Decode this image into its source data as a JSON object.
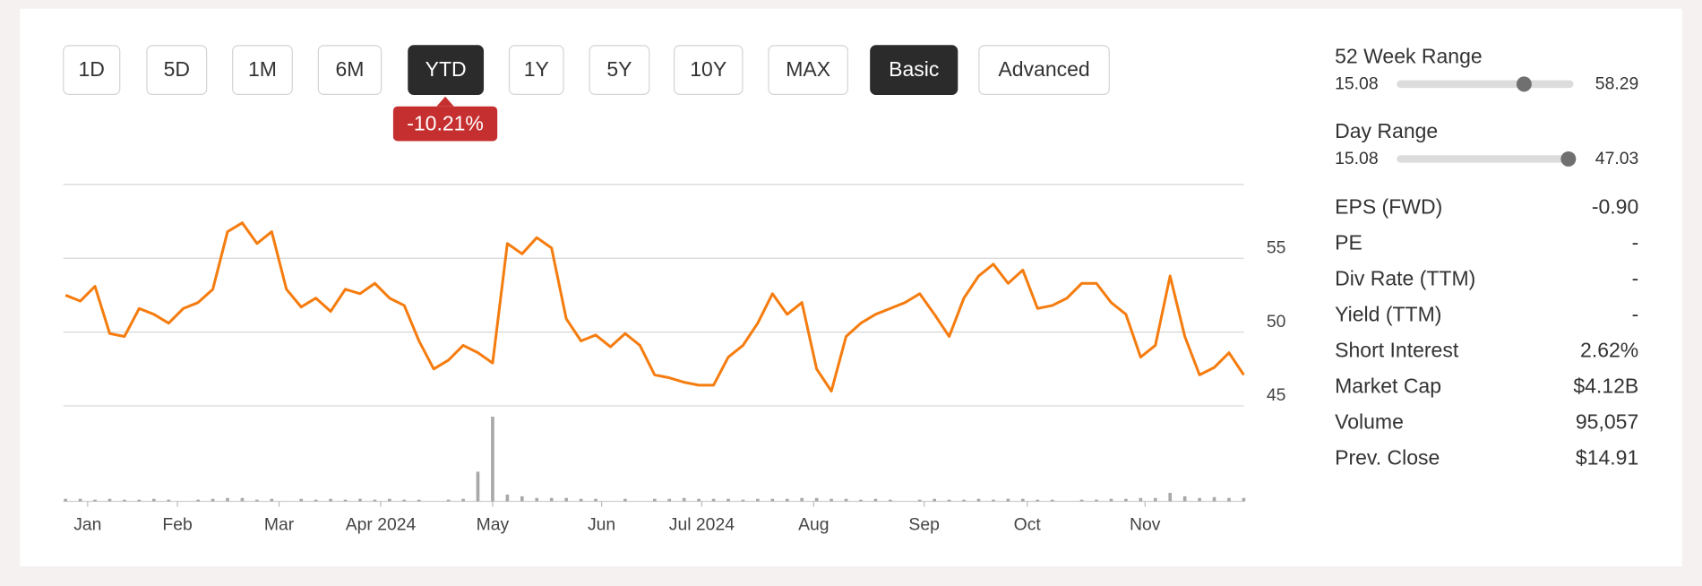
{
  "buttons": [
    {
      "label": "1D",
      "selected": false
    },
    {
      "label": "5D",
      "selected": false
    },
    {
      "label": "1M",
      "selected": false
    },
    {
      "label": "6M",
      "selected": false
    },
    {
      "label": "YTD",
      "selected": true
    },
    {
      "label": "1Y",
      "selected": false
    },
    {
      "label": "5Y",
      "selected": false
    },
    {
      "label": "10Y",
      "selected": false
    },
    {
      "label": "MAX",
      "selected": false
    },
    {
      "label": "Basic",
      "selected": true
    },
    {
      "label": "Advanced",
      "selected": false
    }
  ],
  "change_badge": "-10.21%",
  "chart_data": {
    "type": "line",
    "xlim": [
      0,
      80
    ],
    "ylim": [
      45,
      60
    ],
    "yticks": [
      45,
      50,
      55
    ],
    "xticks": [
      {
        "value": 1.5,
        "label": "Jan"
      },
      {
        "value": 7.6,
        "label": "Feb"
      },
      {
        "value": 14.5,
        "label": "Mar"
      },
      {
        "value": 21.4,
        "label": "Apr 2024"
      },
      {
        "value": 29.0,
        "label": "May"
      },
      {
        "value": 36.4,
        "label": "Jun"
      },
      {
        "value": 43.2,
        "label": "Jul 2024"
      },
      {
        "value": 50.8,
        "label": "Aug"
      },
      {
        "value": 58.3,
        "label": "Sep"
      },
      {
        "value": 65.3,
        "label": "Oct"
      },
      {
        "value": 73.3,
        "label": "Nov"
      }
    ],
    "series": [
      {
        "color": "#f57c0f",
        "values": [
          52.5,
          52.1,
          53.1,
          49.9,
          49.7,
          51.6,
          51.2,
          50.6,
          51.6,
          52.0,
          52.9,
          56.8,
          57.4,
          56.0,
          56.8,
          52.9,
          51.7,
          52.3,
          51.4,
          52.9,
          52.6,
          53.3,
          52.3,
          51.8,
          49.4,
          47.5,
          48.1,
          49.1,
          48.6,
          47.9,
          56.0,
          55.3,
          56.4,
          55.7,
          50.9,
          49.4,
          49.8,
          49.0,
          49.9,
          49.1,
          47.1,
          46.9,
          46.6,
          46.4,
          46.4,
          48.3,
          49.1,
          50.6,
          52.6,
          51.2,
          52.0,
          47.5,
          46.0,
          49.7,
          50.6,
          51.2,
          51.6,
          52.0,
          52.6,
          51.2,
          49.7,
          52.3,
          53.8,
          54.6,
          53.3,
          54.2,
          51.6,
          51.8,
          52.3,
          53.3,
          53.3,
          52.0,
          51.2,
          48.3,
          49.1,
          53.8,
          49.7,
          47.1,
          47.6,
          48.6,
          47.1
        ]
      }
    ],
    "volume": {
      "color": "#a8a8a8",
      "ylim": [
        0,
        100
      ],
      "values": [
        3,
        3,
        2,
        3,
        2,
        2,
        3,
        2,
        0,
        2,
        3,
        4,
        4,
        2,
        3,
        0,
        3,
        2,
        3,
        2,
        3,
        2,
        3,
        2,
        2,
        0,
        2,
        3,
        35,
        100,
        8,
        6,
        4,
        4,
        4,
        3,
        3,
        0,
        3,
        0,
        3,
        3,
        4,
        3,
        3,
        3,
        2,
        3,
        3,
        3,
        4,
        4,
        3,
        3,
        2,
        3,
        2,
        0,
        2,
        3,
        2,
        2,
        3,
        2,
        3,
        3,
        2,
        2,
        0,
        2,
        2,
        3,
        3,
        4,
        4,
        10,
        6,
        4,
        5,
        4,
        4
      ]
    }
  },
  "ranges": [
    {
      "label": "52 Week Range",
      "low": 15.08,
      "high": 58.29,
      "marker": 46.2
    },
    {
      "label": "Day Range",
      "low": 15.08,
      "high": 47.03,
      "marker": 46.1
    }
  ],
  "stats": [
    {
      "label": "EPS (FWD)",
      "value": "-0.90"
    },
    {
      "label": "PE",
      "value": "-"
    },
    {
      "label": "Div Rate (TTM)",
      "value": "-"
    },
    {
      "label": "Yield (TTM)",
      "value": "-"
    },
    {
      "label": "Short Interest",
      "value": "2.62%"
    },
    {
      "label": "Market Cap",
      "value": "$4.12B"
    },
    {
      "label": "Volume",
      "value": "95,057"
    },
    {
      "label": "Prev. Close",
      "value": "$14.91"
    }
  ]
}
